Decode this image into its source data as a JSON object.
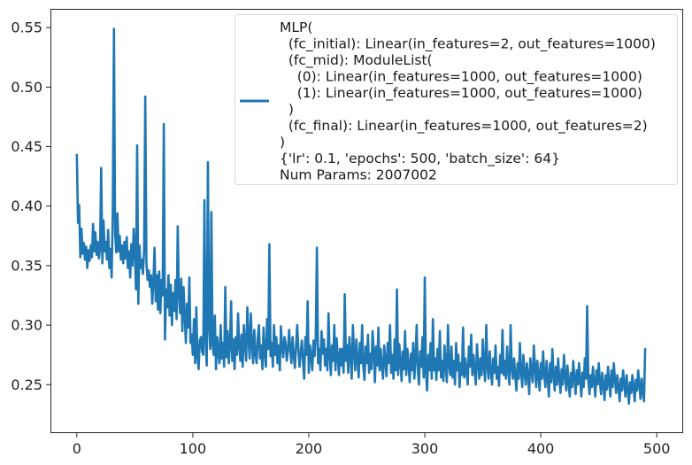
{
  "chart_data": {
    "type": "line",
    "title": "",
    "xlabel": "",
    "ylabel": "",
    "xlim": [
      -22,
      522
    ],
    "ylim": [
      0.21,
      0.565
    ],
    "x_ticks": [
      0,
      100,
      200,
      300,
      400,
      500
    ],
    "x_tick_labels": [
      "0",
      "100",
      "200",
      "300",
      "400",
      "500"
    ],
    "y_ticks": [
      0.25,
      0.3,
      0.35,
      0.4,
      0.45,
      0.5,
      0.55
    ],
    "y_tick_labels": [
      "0.25",
      "0.30",
      "0.35",
      "0.40",
      "0.45",
      "0.50",
      "0.55"
    ],
    "grid": false,
    "legend_position": "top-right",
    "legend_lines": [
      "MLP(",
      "  (fc_initial): Linear(in_features=2, out_features=1000)",
      "  (fc_mid): ModuleList(",
      "    (0): Linear(in_features=1000, out_features=1000)",
      "    (1): Linear(in_features=1000, out_features=1000)",
      "  )",
      "  (fc_final): Linear(in_features=1000, out_features=2)",
      ")",
      "{'lr': 0.1, 'epochs': 500, 'batch_size': 64}",
      "Num Params: 2007002"
    ],
    "series_color": "#1f77b4",
    "series": [
      {
        "x_start": 0,
        "x_step": 1,
        "values": [
          0.443,
          0.386,
          0.401,
          0.357,
          0.381,
          0.36,
          0.369,
          0.355,
          0.366,
          0.348,
          0.363,
          0.354,
          0.367,
          0.357,
          0.385,
          0.362,
          0.378,
          0.359,
          0.37,
          0.356,
          0.364,
          0.432,
          0.352,
          0.388,
          0.362,
          0.37,
          0.355,
          0.38,
          0.348,
          0.364,
          0.34,
          0.396,
          0.549,
          0.378,
          0.361,
          0.394,
          0.362,
          0.375,
          0.355,
          0.367,
          0.352,
          0.37,
          0.356,
          0.374,
          0.348,
          0.362,
          0.34,
          0.368,
          0.35,
          0.381,
          0.362,
          0.33,
          0.451,
          0.318,
          0.367,
          0.348,
          0.355,
          0.343,
          0.363,
          0.492,
          0.352,
          0.338,
          0.346,
          0.332,
          0.342,
          0.318,
          0.336,
          0.365,
          0.32,
          0.342,
          0.313,
          0.345,
          0.31,
          0.338,
          0.325,
          0.469,
          0.288,
          0.33,
          0.315,
          0.342,
          0.308,
          0.334,
          0.3,
          0.327,
          0.312,
          0.338,
          0.305,
          0.383,
          0.326,
          0.31,
          0.339,
          0.295,
          0.332,
          0.31,
          0.285,
          0.318,
          0.298,
          0.34,
          0.285,
          0.292,
          0.275,
          0.305,
          0.268,
          0.315,
          0.274,
          0.263,
          0.287,
          0.29,
          0.278,
          0.275,
          0.405,
          0.288,
          0.266,
          0.437,
          0.299,
          0.28,
          0.395,
          0.285,
          0.275,
          0.308,
          0.263,
          0.29,
          0.277,
          0.268,
          0.3,
          0.272,
          0.285,
          0.265,
          0.332,
          0.273,
          0.295,
          0.268,
          0.283,
          0.32,
          0.27,
          0.288,
          0.263,
          0.29,
          0.275,
          0.31,
          0.282,
          0.27,
          0.292,
          0.265,
          0.3,
          0.285,
          0.27,
          0.315,
          0.29,
          0.272,
          0.31,
          0.284,
          0.268,
          0.296,
          0.276,
          0.268,
          0.289,
          0.3,
          0.272,
          0.283,
          0.263,
          0.298,
          0.276,
          0.265,
          0.305,
          0.28,
          0.368,
          0.274,
          0.285,
          0.265,
          0.3,
          0.275,
          0.29,
          0.268,
          0.283,
          0.262,
          0.299,
          0.281,
          0.273,
          0.29,
          0.285,
          0.27,
          0.278,
          0.296,
          0.28,
          0.268,
          0.29,
          0.275,
          0.264,
          0.282,
          0.3,
          0.28,
          0.265,
          0.276,
          0.287,
          0.27,
          0.255,
          0.29,
          0.275,
          0.32,
          0.26,
          0.283,
          0.274,
          0.262,
          0.287,
          0.274,
          0.29,
          0.365,
          0.268,
          0.28,
          0.262,
          0.295,
          0.276,
          0.288,
          0.266,
          0.28,
          0.262,
          0.31,
          0.276,
          0.258,
          0.283,
          0.27,
          0.3,
          0.262,
          0.289,
          0.273,
          0.258,
          0.28,
          0.266,
          0.28,
          0.26,
          0.326,
          0.27,
          0.283,
          0.26,
          0.29,
          0.275,
          0.255,
          0.3,
          0.278,
          0.262,
          0.288,
          0.27,
          0.256,
          0.285,
          0.268,
          0.3,
          0.265,
          0.254,
          0.282,
          0.268,
          0.292,
          0.26,
          0.276,
          0.263,
          0.295,
          0.278,
          0.252,
          0.282,
          0.266,
          0.298,
          0.262,
          0.28,
          0.265,
          0.255,
          0.283,
          0.27,
          0.257,
          0.285,
          0.268,
          0.3,
          0.26,
          0.275,
          0.255,
          0.288,
          0.262,
          0.33,
          0.258,
          0.284,
          0.27,
          0.253,
          0.278,
          0.263,
          0.295,
          0.258,
          0.28,
          0.267,
          0.252,
          0.276,
          0.262,
          0.285,
          0.255,
          0.272,
          0.3,
          0.262,
          0.25,
          0.278,
          0.265,
          0.29,
          0.256,
          0.34,
          0.26,
          0.245,
          0.275,
          0.262,
          0.285,
          0.255,
          0.305,
          0.262,
          0.272,
          0.254,
          0.28,
          0.262,
          0.295,
          0.256,
          0.27,
          0.253,
          0.283,
          0.265,
          0.252,
          0.3,
          0.266,
          0.258,
          0.282,
          0.256,
          0.27,
          0.25,
          0.285,
          0.262,
          0.275,
          0.248,
          0.268,
          0.258,
          0.298,
          0.256,
          0.272,
          0.262,
          0.25,
          0.282,
          0.265,
          0.292,
          0.258,
          0.275,
          0.262,
          0.25,
          0.284,
          0.268,
          0.255,
          0.272,
          0.258,
          0.288,
          0.265,
          0.253,
          0.3,
          0.266,
          0.255,
          0.278,
          0.262,
          0.25,
          0.272,
          0.26,
          0.283,
          0.255,
          0.265,
          0.249,
          0.275,
          0.26,
          0.296,
          0.258,
          0.27,
          0.255,
          0.282,
          0.262,
          0.25,
          0.3,
          0.264,
          0.255,
          0.272,
          0.258,
          0.245,
          0.268,
          0.255,
          0.285,
          0.262,
          0.248,
          0.275,
          0.26,
          0.25,
          0.268,
          0.258,
          0.242,
          0.272,
          0.262,
          0.252,
          0.283,
          0.265,
          0.248,
          0.27,
          0.258,
          0.245,
          0.268,
          0.255,
          0.278,
          0.258,
          0.248,
          0.27,
          0.255,
          0.24,
          0.268,
          0.252,
          0.28,
          0.258,
          0.245,
          0.265,
          0.25,
          0.272,
          0.255,
          0.243,
          0.263,
          0.25,
          0.275,
          0.258,
          0.245,
          0.266,
          0.252,
          0.24,
          0.26,
          0.248,
          0.27,
          0.255,
          0.242,
          0.262,
          0.25,
          0.268,
          0.254,
          0.24,
          0.26,
          0.248,
          0.272,
          0.255,
          0.316,
          0.254,
          0.242,
          0.258,
          0.248,
          0.265,
          0.252,
          0.24,
          0.262,
          0.25,
          0.268,
          0.253,
          0.242,
          0.26,
          0.25,
          0.237,
          0.258,
          0.246,
          0.265,
          0.252,
          0.24,
          0.262,
          0.248,
          0.268,
          0.254,
          0.243,
          0.258,
          0.248,
          0.236,
          0.255,
          0.245,
          0.262,
          0.25,
          0.24,
          0.258,
          0.246,
          0.234,
          0.252,
          0.243,
          0.258,
          0.248,
          0.236,
          0.254,
          0.245,
          0.262,
          0.25,
          0.238,
          0.255,
          0.244,
          0.236,
          0.28
        ]
      }
    ]
  }
}
